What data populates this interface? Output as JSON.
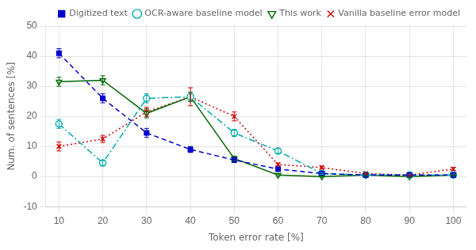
{
  "chart_data": {
    "type": "line",
    "x_label": "Token error rate [%]",
    "y_label": "Num. of sentences [%]",
    "x": [
      10,
      20,
      30,
      40,
      50,
      60,
      70,
      80,
      90,
      100
    ],
    "series": [
      {
        "name": "Digitized text",
        "color": "#0000cc",
        "marker": "square",
        "line_style": "dashed",
        "values": [
          41,
          26,
          14.5,
          9,
          5.5,
          2.5,
          1,
          0.5,
          0.5,
          0.5
        ],
        "errors": [
          1.5,
          1.5,
          1.5,
          1.0,
          0.8,
          0.5,
          0.3,
          0.3,
          0.3,
          0.3
        ]
      },
      {
        "name": "OCR-aware baseline model",
        "color": "#00aaaa",
        "marker": "circle_open",
        "line_style": "dashdot",
        "values": [
          17.5,
          4.5,
          26,
          26.5,
          14.5,
          8.5,
          1.0,
          0.5,
          0.5,
          0.5
        ],
        "errors": [
          1.5,
          0.8,
          1.5,
          1.5,
          1.2,
          0.8,
          0.3,
          0.3,
          0.3,
          0.3
        ]
      },
      {
        "name": "This work",
        "color": "#006600",
        "marker": "triangle_down_open",
        "line_style": "solid",
        "values": [
          31.5,
          32,
          21,
          26.5,
          6,
          0.5,
          0.0,
          0.5,
          0.0,
          0.5
        ],
        "errors": [
          1.5,
          1.5,
          1.5,
          1.5,
          0.8,
          0.3,
          0.2,
          0.3,
          0.2,
          0.3
        ]
      },
      {
        "name": "Vanilla baseline error model",
        "color": "#cc0000",
        "marker": "x",
        "line_style": "dotted",
        "values": [
          10,
          12.5,
          21.5,
          26.5,
          20,
          4,
          3,
          1,
          0.5,
          2.5
        ],
        "errors": [
          1.5,
          1.2,
          1.5,
          3.0,
          1.5,
          0.5,
          0.5,
          0.3,
          0.3,
          0.5
        ]
      }
    ],
    "xlim": [
      7,
      103
    ],
    "xticks": [
      10,
      20,
      30,
      40,
      50,
      60,
      70,
      80,
      90,
      100
    ],
    "ylim": [
      -10,
      50
    ],
    "yticks": [
      -10,
      0,
      10,
      20,
      30,
      40,
      50
    ],
    "grid": true,
    "legend": "upper right"
  }
}
